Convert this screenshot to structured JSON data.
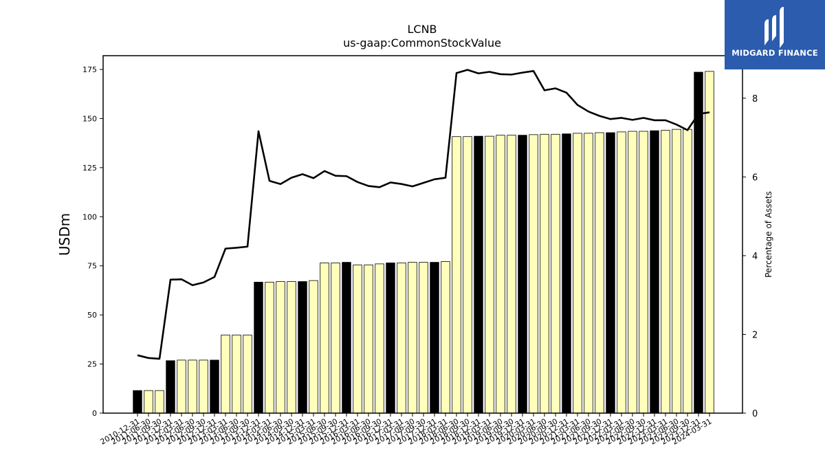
{
  "logo": {
    "text": "MIDGARD FINANCE"
  },
  "chart_data": {
    "type": "bar",
    "title": "LCNB",
    "subtitle": "us-gaap:CommonStockValue",
    "ylabel": "USDm",
    "y2label": "Percentage of Assets",
    "ylim": [
      0,
      182
    ],
    "y2lim": [
      0,
      9.08
    ],
    "yticks": [
      0,
      25,
      50,
      75,
      100,
      125,
      150,
      175
    ],
    "y2ticks": [
      0,
      2,
      4,
      6,
      8
    ],
    "categories": [
      "2010-12-31",
      "2011-06-30",
      "2011-09-30",
      "2011-12-31",
      "2012-03-31",
      "2012-06-30",
      "2012-09-30",
      "2012-12-31",
      "2013-03-31",
      "2013-06-30",
      "2013-09-30",
      "2013-12-31",
      "2014-03-31",
      "2014-06-30",
      "2014-09-30",
      "2014-12-31",
      "2015-03-31",
      "2015-06-30",
      "2015-09-30",
      "2015-12-31",
      "2016-03-31",
      "2016-06-30",
      "2016-09-30",
      "2016-12-31",
      "2017-03-31",
      "2017-06-30",
      "2017-09-30",
      "2017-12-31",
      "2018-03-31",
      "2018-06-30",
      "2018-09-30",
      "2018-12-31",
      "2019-03-31",
      "2019-06-30",
      "2019-09-30",
      "2019-12-31",
      "2020-03-31",
      "2020-06-30",
      "2020-09-30",
      "2020-12-31",
      "2021-03-31",
      "2021-06-30",
      "2021-09-30",
      "2021-12-31",
      "2022-03-31",
      "2022-06-30",
      "2022-09-30",
      "2022-12-31",
      "2023-03-31",
      "2023-06-30",
      "2023-09-30",
      "2023-12-31",
      "2024-03-31"
    ],
    "series": [
      {
        "type": "bar",
        "values": [
          11.5,
          11.5,
          11.5,
          26.7,
          27,
          27,
          27,
          27,
          39.8,
          39.8,
          39.8,
          66.7,
          66.7,
          67,
          67,
          67,
          67.5,
          76.5,
          76.5,
          76.8,
          75.5,
          75.5,
          76,
          76.5,
          76.5,
          76.8,
          76.8,
          76.8,
          77.2,
          140.8,
          140.8,
          141,
          141,
          141.5,
          141.5,
          141.5,
          141.8,
          142,
          142,
          142.2,
          142.5,
          142.5,
          142.8,
          142.8,
          143.2,
          143.5,
          143.5,
          143.8,
          144,
          144.5,
          144.5,
          173.6,
          174
        ],
        "colors_by_index": {
          "black": [
            0,
            3,
            7,
            11,
            15,
            19,
            23,
            27,
            31,
            35,
            39,
            43,
            47,
            51
          ]
        }
      },
      {
        "type": "line",
        "axis": "right",
        "values": [
          1.47,
          1.4,
          1.38,
          3.39,
          3.4,
          3.25,
          3.32,
          3.46,
          4.18,
          4.2,
          4.23,
          7.16,
          5.9,
          5.82,
          5.98,
          6.07,
          5.97,
          6.15,
          6.03,
          6.02,
          5.87,
          5.77,
          5.74,
          5.86,
          5.82,
          5.76,
          5.85,
          5.94,
          5.98,
          8.64,
          8.72,
          8.63,
          8.67,
          8.61,
          8.6,
          8.65,
          8.69,
          8.2,
          8.25,
          8.14,
          7.83,
          7.66,
          7.55,
          7.47,
          7.5,
          7.45,
          7.5,
          7.44,
          7.44,
          7.33,
          7.19,
          7.6,
          7.64
        ]
      }
    ],
    "colors": {
      "bar_fill": "#ffffbb",
      "bar_highlight": "#000000",
      "line": "#000000"
    }
  }
}
